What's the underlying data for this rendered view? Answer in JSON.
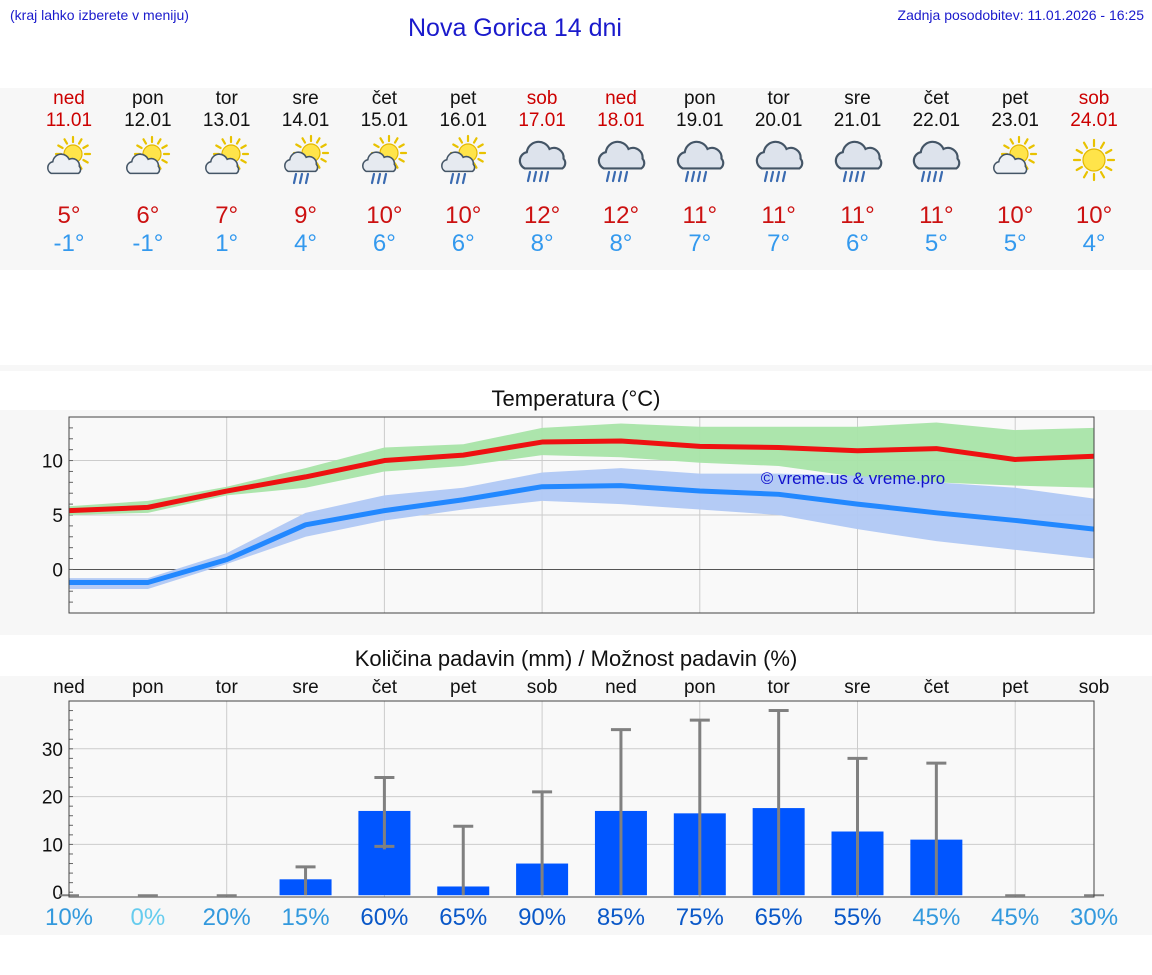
{
  "header": {
    "hint": "(kraj lahko izberete v meniju)",
    "title": "Nova Gorica 14 dni",
    "updated": "Zadnja posodobitev: 11.01.2026 - 16:25"
  },
  "colors": {
    "link": "#1a1acc",
    "max_line": "#ee1111",
    "max_band": "#a8e4a8",
    "min_line": "#2288ff",
    "min_band": "#b0c8f4",
    "bar": "#0055ff",
    "whisker": "#808080"
  },
  "days": [
    {
      "name": "ned",
      "date": "11.01",
      "weekend": true,
      "icon": "sun-cloud-icon",
      "tmax": "5°",
      "tmin": "-1°"
    },
    {
      "name": "pon",
      "date": "12.01",
      "weekend": false,
      "icon": "sun-cloud-icon",
      "tmax": "6°",
      "tmin": "-1°"
    },
    {
      "name": "tor",
      "date": "13.01",
      "weekend": false,
      "icon": "sun-cloud-icon",
      "tmax": "7°",
      "tmin": "1°"
    },
    {
      "name": "sre",
      "date": "14.01",
      "weekend": false,
      "icon": "sun-rain-icon",
      "tmax": "9°",
      "tmin": "4°"
    },
    {
      "name": "čet",
      "date": "15.01",
      "weekend": false,
      "icon": "sun-rain-icon",
      "tmax": "10°",
      "tmin": "6°"
    },
    {
      "name": "pet",
      "date": "16.01",
      "weekend": false,
      "icon": "sun-rain-icon",
      "tmax": "10°",
      "tmin": "6°"
    },
    {
      "name": "sob",
      "date": "17.01",
      "weekend": true,
      "icon": "cloud-rain-icon",
      "tmax": "12°",
      "tmin": "8°"
    },
    {
      "name": "ned",
      "date": "18.01",
      "weekend": true,
      "icon": "cloud-rain-icon",
      "tmax": "12°",
      "tmin": "8°"
    },
    {
      "name": "pon",
      "date": "19.01",
      "weekend": false,
      "icon": "cloud-rain-icon",
      "tmax": "11°",
      "tmin": "7°"
    },
    {
      "name": "tor",
      "date": "20.01",
      "weekend": false,
      "icon": "cloud-rain-icon",
      "tmax": "11°",
      "tmin": "7°"
    },
    {
      "name": "sre",
      "date": "21.01",
      "weekend": false,
      "icon": "cloud-rain-icon",
      "tmax": "11°",
      "tmin": "6°"
    },
    {
      "name": "čet",
      "date": "22.01",
      "weekend": false,
      "icon": "cloud-rain-icon",
      "tmax": "11°",
      "tmin": "5°"
    },
    {
      "name": "pet",
      "date": "23.01",
      "weekend": false,
      "icon": "sun-cloud-icon",
      "tmax": "10°",
      "tmin": "5°"
    },
    {
      "name": "sob",
      "date": "24.01",
      "weekend": true,
      "icon": "sun-icon",
      "tmax": "10°",
      "tmin": "4°"
    }
  ],
  "chart_data": [
    {
      "type": "line",
      "title": "Temperatura (°C)",
      "watermark": "© vreme.us & vreme.pro",
      "categories": [
        "ned",
        "pon",
        "tor",
        "sre",
        "čet",
        "pet",
        "sob",
        "ned",
        "pon",
        "tor",
        "sre",
        "čet",
        "pet",
        "sob"
      ],
      "ylim": [
        -4,
        14
      ],
      "yticks": [
        0,
        5,
        10
      ],
      "series": [
        {
          "name": "max",
          "values": [
            5.4,
            5.7,
            7.2,
            8.5,
            10.0,
            10.5,
            11.7,
            11.8,
            11.3,
            11.2,
            10.9,
            11.1,
            10.1,
            10.4
          ],
          "band_low": [
            5.0,
            5.2,
            6.8,
            7.5,
            9.0,
            9.5,
            10.5,
            10.3,
            9.8,
            9.5,
            8.5,
            8.0,
            7.7,
            7.5
          ],
          "band_high": [
            5.8,
            6.3,
            7.6,
            9.3,
            11.2,
            11.5,
            13.0,
            13.4,
            13.1,
            13.1,
            13.1,
            13.5,
            12.8,
            13.0
          ]
        },
        {
          "name": "min",
          "values": [
            -1.2,
            -1.2,
            0.9,
            4.1,
            5.4,
            6.4,
            7.6,
            7.7,
            7.2,
            6.9,
            6.0,
            5.2,
            4.5,
            3.7
          ],
          "band_low": [
            -1.8,
            -1.8,
            0.5,
            3.0,
            4.5,
            5.5,
            6.3,
            6.0,
            5.5,
            5.0,
            3.7,
            2.6,
            1.8,
            1.0
          ],
          "band_high": [
            -0.8,
            -0.8,
            1.5,
            5.2,
            6.8,
            7.5,
            8.9,
            9.3,
            8.8,
            8.8,
            8.6,
            8.0,
            7.5,
            6.5
          ]
        }
      ]
    },
    {
      "type": "bar",
      "title": "Količina padavin (mm) / Možnost padavin (%)",
      "categories": [
        "ned",
        "pon",
        "tor",
        "sre",
        "čet",
        "pet",
        "sob",
        "ned",
        "pon",
        "tor",
        "sre",
        "čet",
        "pet",
        "sob"
      ],
      "ylim": [
        -1,
        40
      ],
      "yticks": [
        0,
        10,
        20,
        30
      ],
      "values": [
        0,
        0,
        0,
        2.7,
        17,
        1.2,
        6,
        17,
        16.5,
        17.6,
        12.7,
        11,
        0,
        0
      ],
      "range_low": [
        0,
        0,
        0,
        0,
        9.6,
        0,
        0,
        0,
        0,
        0,
        0,
        0,
        0,
        0
      ],
      "range_high": [
        0,
        0,
        0,
        5.3,
        24,
        13.8,
        21,
        34,
        36,
        38,
        28,
        27,
        0,
        0
      ],
      "probability": [
        "10%",
        "0%",
        "20%",
        "15%",
        "60%",
        "65%",
        "90%",
        "85%",
        "75%",
        "65%",
        "55%",
        "45%",
        "45%",
        "30%"
      ],
      "probability_colors": [
        "#3399dd",
        "#66ccee",
        "#3399dd",
        "#3399dd",
        "#0a58c8",
        "#0a58c8",
        "#0a58c8",
        "#0a58c8",
        "#0a58c8",
        "#0a58c8",
        "#0a58c8",
        "#3399dd",
        "#3399dd",
        "#3399dd"
      ]
    }
  ]
}
